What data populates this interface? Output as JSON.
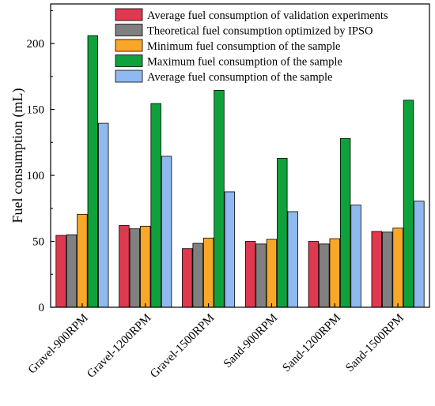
{
  "chart_data": {
    "type": "bar",
    "xlabel": "",
    "ylabel": "Fuel consumption (mL)",
    "ylim": [
      0,
      230
    ],
    "yticks": [
      0,
      50,
      100,
      150,
      200
    ],
    "grid": false,
    "legend_position": "top-right",
    "categories": [
      "Gravel-900RPM",
      "Gravel-1200RPM",
      "Gravel-1500RPM",
      "Sand-900RPM",
      "Sand-1200RPM",
      "Sand-1500RPM"
    ],
    "series": [
      {
        "name": "Average fuel consumption of validation experiments",
        "color": "#e0394f",
        "values": [
          54.5,
          62,
          44.5,
          50,
          50,
          57.5
        ]
      },
      {
        "name": "Theoretical fuel consumption optimized by IPSO",
        "color": "#808080",
        "values": [
          55,
          59.5,
          48.5,
          48,
          48,
          57
        ]
      },
      {
        "name": "Minimum fuel consumption of the sample",
        "color": "#f9a729",
        "values": [
          70.5,
          61.5,
          52.5,
          51.5,
          52,
          60
        ]
      },
      {
        "name": "Maximum fuel consumption of the sample",
        "color": "#0fa23c",
        "values": [
          206,
          154.5,
          164.5,
          113,
          128,
          157
        ]
      },
      {
        "name": "Average fuel consumption of the sample",
        "color": "#8fb9ef",
        "values": [
          139.5,
          114.5,
          87.5,
          72.5,
          77.5,
          80.5
        ]
      }
    ]
  }
}
